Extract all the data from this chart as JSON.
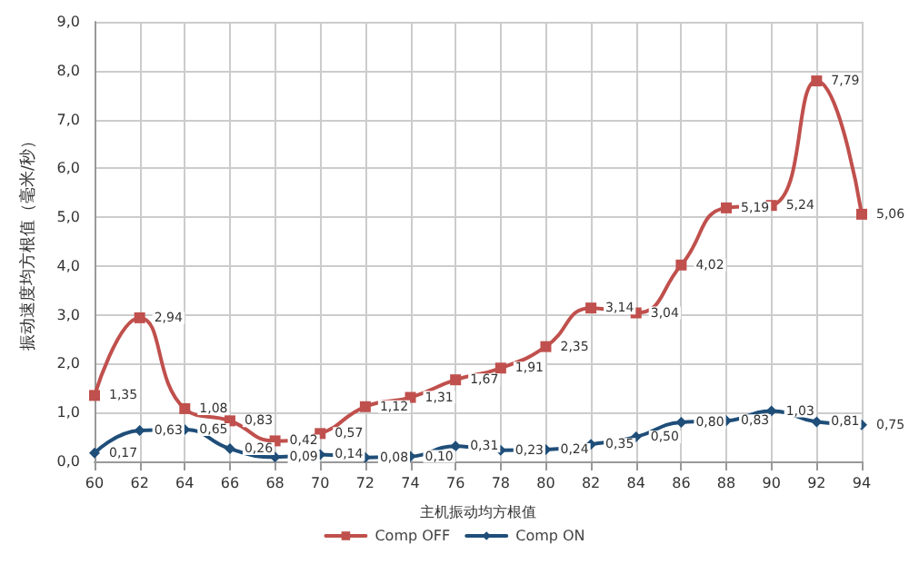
{
  "chart_data": {
    "type": "line",
    "xlabel": "主机振动均方根值",
    "ylabel": "振动速度均方根值（毫米/秒）",
    "categories": [
      "60",
      "62",
      "64",
      "66",
      "68",
      "70",
      "72",
      "74",
      "76",
      "78",
      "80",
      "82",
      "84",
      "86",
      "88",
      "90",
      "92",
      "94"
    ],
    "series": [
      {
        "name": "Comp OFF",
        "color": "#c0504d",
        "marker": "square",
        "values": [
          1.35,
          2.94,
          1.08,
          0.83,
          0.42,
          0.57,
          1.12,
          1.31,
          1.67,
          1.91,
          2.35,
          3.14,
          3.04,
          4.02,
          5.19,
          5.24,
          7.79,
          5.06
        ],
        "value_labels": [
          "1,35",
          "2,94",
          "1,08",
          "0,83",
          "0,42",
          "0,57",
          "1,12",
          "1,31",
          "1,67",
          "1,91",
          "2,35",
          "3,14",
          "3,04",
          "4,02",
          "5,19",
          "5,24",
          "7,79",
          "5,06"
        ]
      },
      {
        "name": "Comp ON",
        "color": "#1f4e79",
        "marker": "diamond",
        "values": [
          0.17,
          0.63,
          0.65,
          0.26,
          0.09,
          0.14,
          0.08,
          0.1,
          0.31,
          0.23,
          0.24,
          0.35,
          0.5,
          0.8,
          0.83,
          1.03,
          0.81,
          0.75
        ],
        "value_labels": [
          "0,17",
          "0,63",
          "0,65",
          "0,26",
          "0,09",
          "0,14",
          "0,08",
          "0,10",
          "0,31",
          "0,23",
          "0,24",
          "0,35",
          "0,50",
          "0,80",
          "0,83",
          "1,03",
          "0,81",
          "0,75"
        ]
      }
    ],
    "ylim": [
      0,
      9
    ],
    "yticks": [
      {
        "value": 0,
        "label": "0,0"
      },
      {
        "value": 1,
        "label": "1,0"
      },
      {
        "value": 2,
        "label": "2,0"
      },
      {
        "value": 3,
        "label": "3,0"
      },
      {
        "value": 4,
        "label": "4,0"
      },
      {
        "value": 5,
        "label": "5,0"
      },
      {
        "value": 6,
        "label": "6,0"
      },
      {
        "value": 7,
        "label": "7,0"
      },
      {
        "value": 8,
        "label": "8,0"
      },
      {
        "value": 9,
        "label": "9,0"
      }
    ],
    "grid": true,
    "legend": "bottom",
    "line_style": "solid"
  }
}
